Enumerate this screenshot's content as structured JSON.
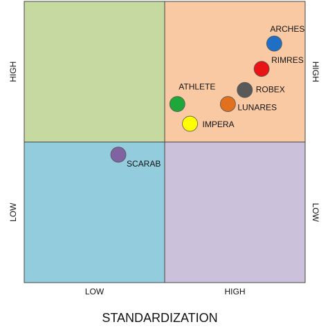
{
  "chart_data": {
    "type": "scatter",
    "x_label": "STANDARDIZATION",
    "xlim": [
      0,
      2
    ],
    "ylim": [
      0,
      2
    ],
    "xticks": [
      {
        "value": 0.5,
        "label": "LOW"
      },
      {
        "value": 1.5,
        "label": "HIGH"
      }
    ],
    "yticks": [
      {
        "value": 0.5,
        "label": "LOW"
      },
      {
        "value": 1.5,
        "label": "HIGH"
      }
    ],
    "quadrant_colors": [
      "#93cddd",
      "#ccc1da",
      "#c5d9a1",
      "#f9c9a4"
    ],
    "labels": [
      "ARCHES",
      "RIMRES",
      "ROBEX",
      "LUNARES",
      "ATHLETE",
      "IMPERA",
      "SCARAB"
    ],
    "x": [
      1.78,
      1.69,
      1.57,
      1.45,
      1.09,
      1.18,
      0.67
    ],
    "y": [
      1.7,
      1.52,
      1.37,
      1.27,
      1.27,
      1.13,
      0.91
    ],
    "colors": [
      "#1f6fc5",
      "#e81416",
      "#595959",
      "#e2711d",
      "#1fa83a",
      "#ffff00",
      "#8064a2"
    ]
  }
}
